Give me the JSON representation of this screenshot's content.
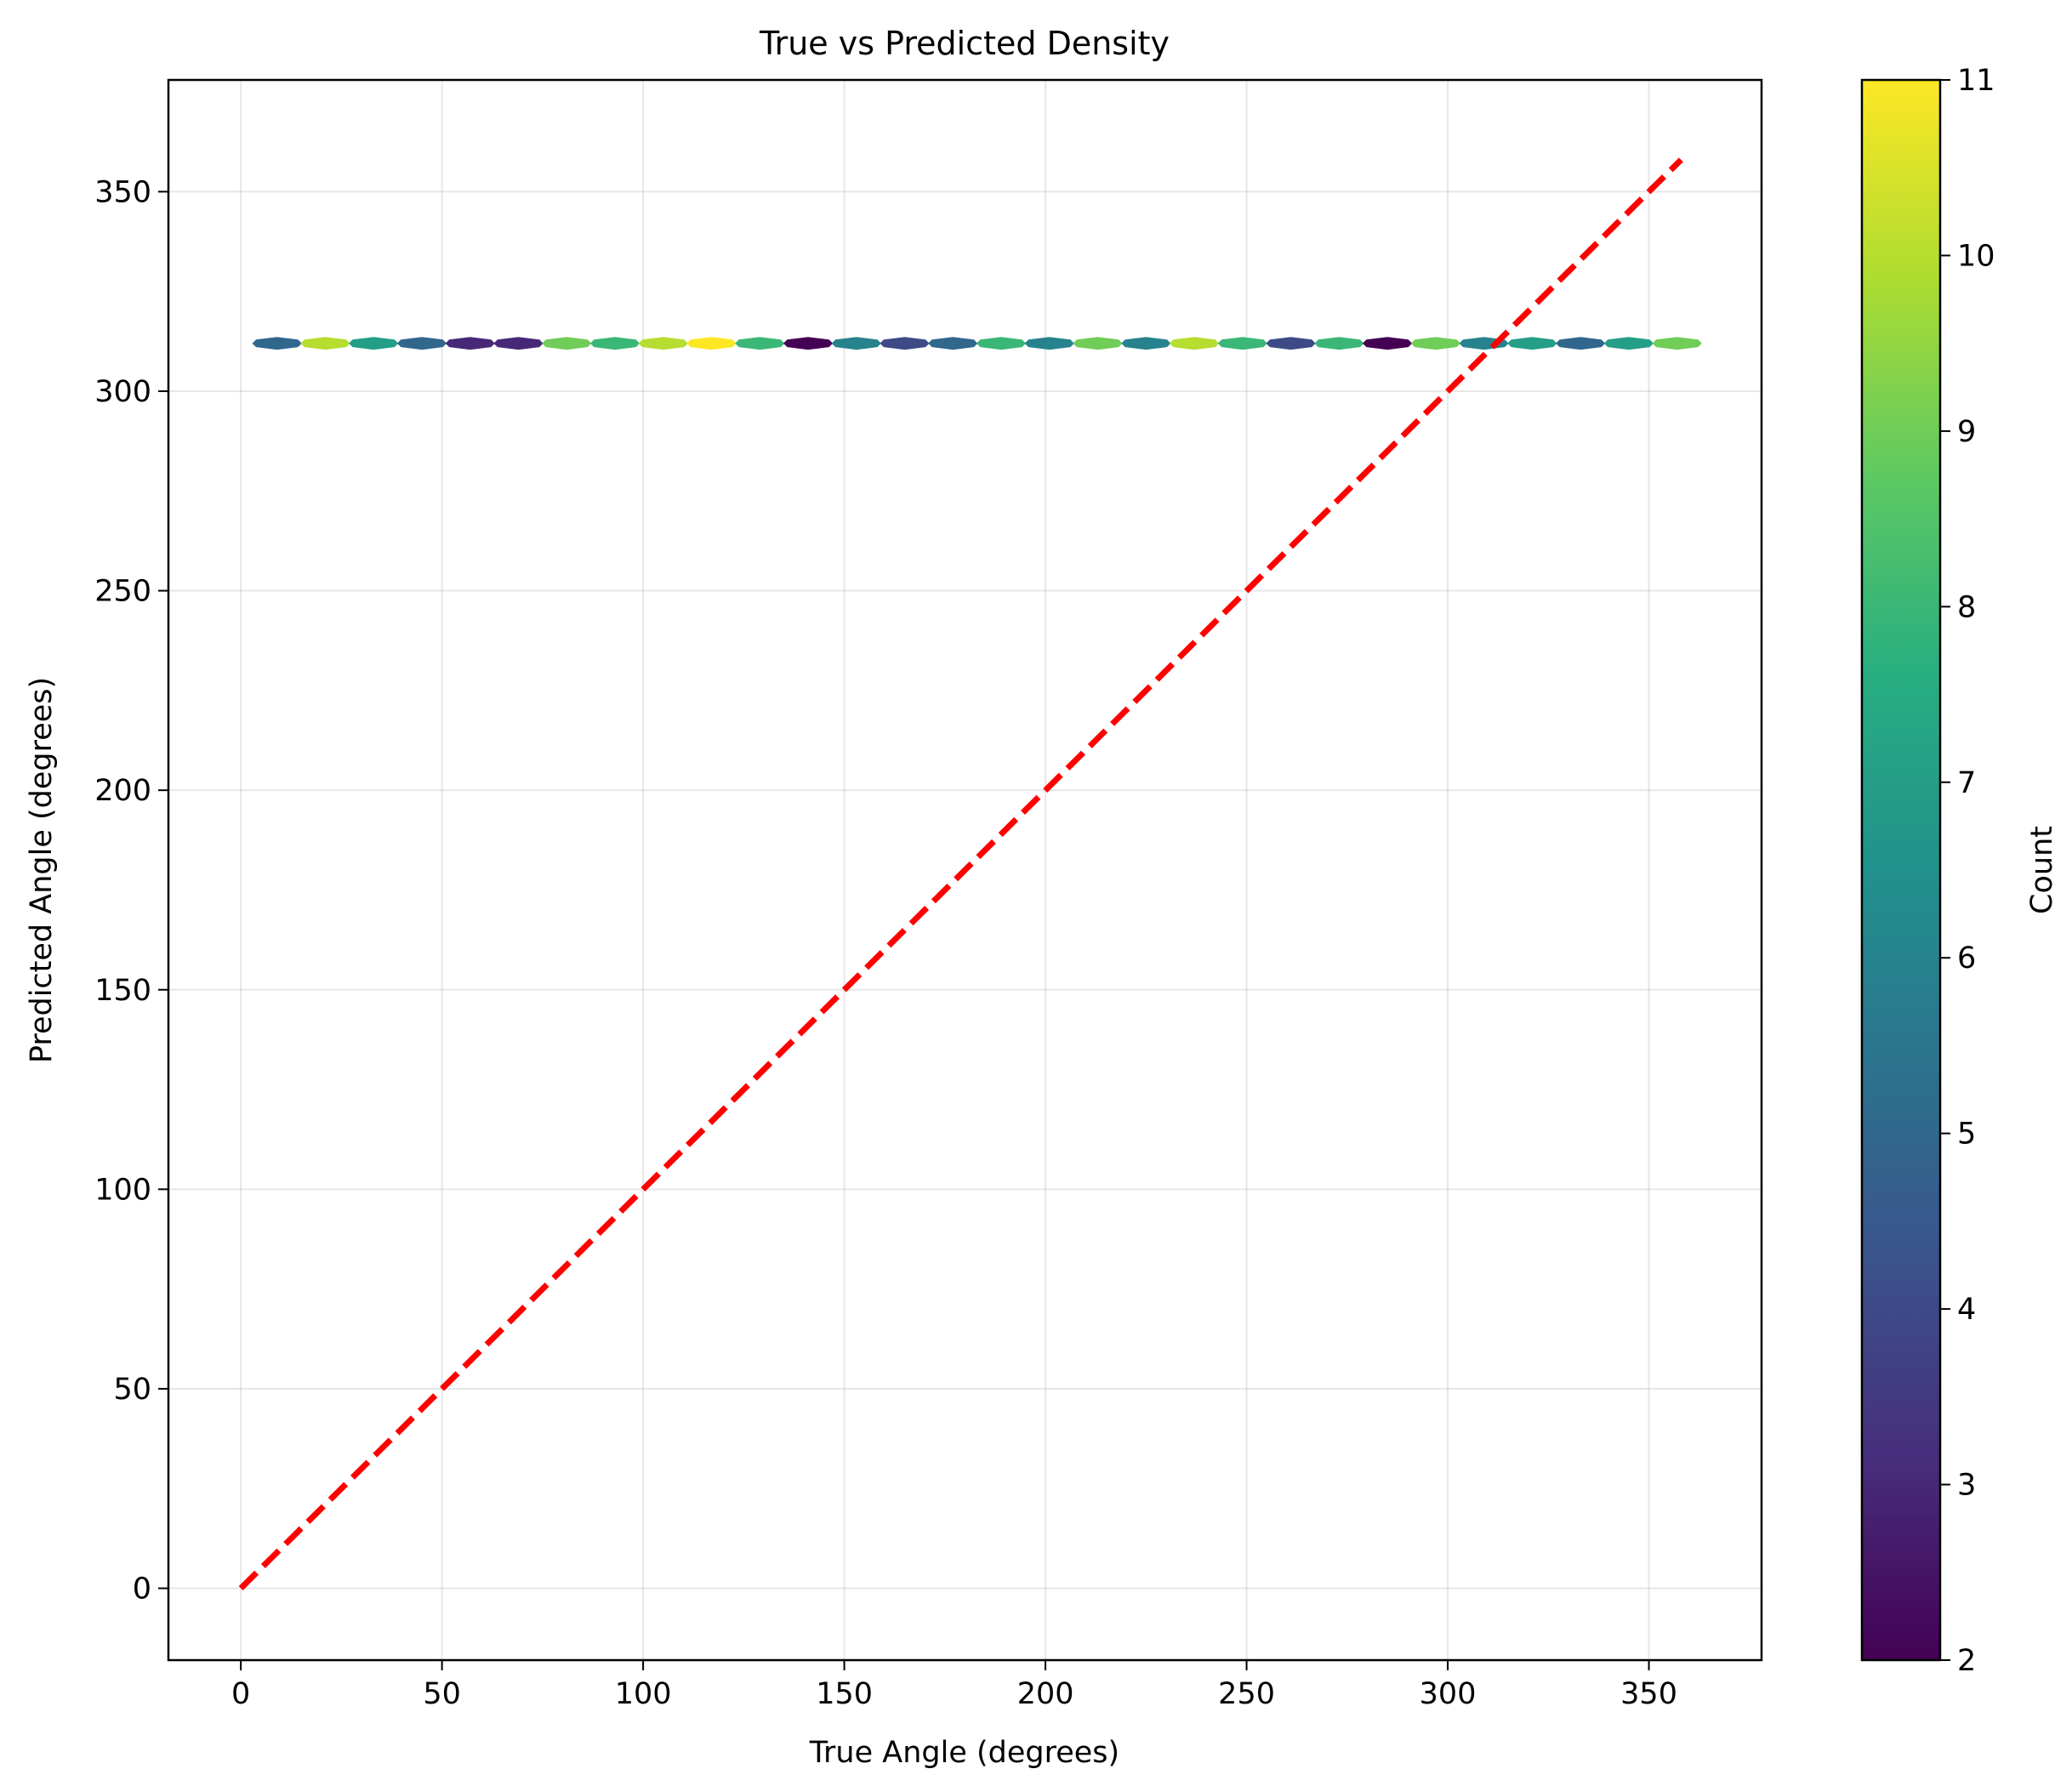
{
  "chart_data": {
    "type": "hexbin",
    "title": "True vs Predicted Density",
    "xlabel": "True Angle (degrees)",
    "ylabel": "Predicted Angle (degrees)",
    "xlim": [
      -18,
      378
    ],
    "ylim": [
      -18,
      378
    ],
    "xticks": [
      0,
      50,
      100,
      150,
      200,
      250,
      300,
      350
    ],
    "yticks": [
      0,
      50,
      100,
      150,
      200,
      250,
      300,
      350
    ],
    "grid": true,
    "reference_line": {
      "x": [
        0,
        358
      ],
      "y": [
        0,
        358
      ],
      "color": "#ff0000",
      "style": "dashed"
    },
    "hexbins": {
      "y": 312,
      "x": [
        9,
        21,
        33,
        45,
        57,
        69,
        81,
        93,
        105,
        117,
        129,
        141,
        153,
        165,
        177,
        189,
        201,
        213,
        225,
        237,
        249,
        261,
        273,
        285,
        297,
        309,
        321,
        333,
        345,
        357
      ],
      "counts": [
        5,
        10,
        7,
        5,
        3,
        3,
        9,
        8,
        10,
        11,
        8,
        2,
        6,
        4,
        5,
        8,
        6,
        9,
        6,
        10,
        8,
        4,
        8,
        2,
        9,
        6,
        7,
        5,
        7,
        9
      ]
    },
    "colorbar": {
      "label": "Count",
      "min": 2,
      "max": 11,
      "ticks": [
        2,
        3,
        4,
        5,
        6,
        7,
        8,
        9,
        10,
        11
      ],
      "colormap": "viridis"
    }
  }
}
